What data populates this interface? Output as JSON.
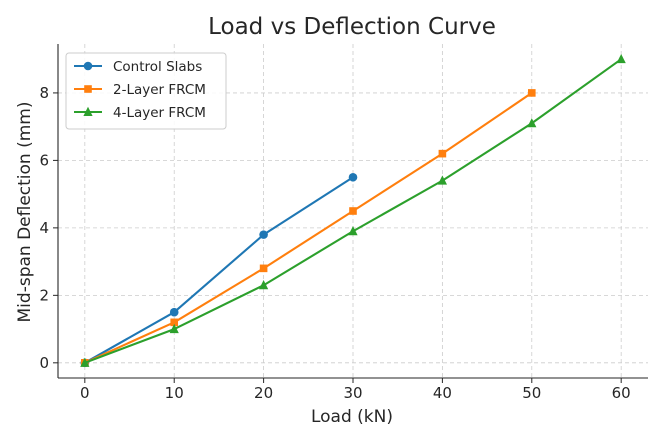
{
  "chart_data": {
    "type": "line",
    "title": "Load vs Deflection Curve",
    "xlabel": "Load (kN)",
    "ylabel": "Mid-span Deflection (mm)",
    "xlim": [
      -3,
      63
    ],
    "ylim": [
      -0.45,
      9.45
    ],
    "xticks": [
      0,
      10,
      20,
      30,
      40,
      50,
      60
    ],
    "yticks": [
      0,
      2,
      4,
      6,
      8
    ],
    "grid": true,
    "legend_position": "top-left",
    "series": [
      {
        "name": "Control Slabs",
        "color": "#1f77b4",
        "marker": "circle",
        "x": [
          0,
          10,
          20,
          30
        ],
        "y": [
          0,
          1.5,
          3.8,
          5.5
        ]
      },
      {
        "name": "2-Layer FRCM",
        "color": "#ff7f0e",
        "marker": "square",
        "x": [
          0,
          10,
          20,
          30,
          40,
          50
        ],
        "y": [
          0,
          1.2,
          2.8,
          4.5,
          6.2,
          8.0
        ]
      },
      {
        "name": "4-Layer FRCM",
        "color": "#2ca02c",
        "marker": "triangle",
        "x": [
          0,
          10,
          20,
          30,
          40,
          50,
          60
        ],
        "y": [
          0,
          1.0,
          2.3,
          3.9,
          5.4,
          7.1,
          9.0
        ]
      }
    ]
  }
}
